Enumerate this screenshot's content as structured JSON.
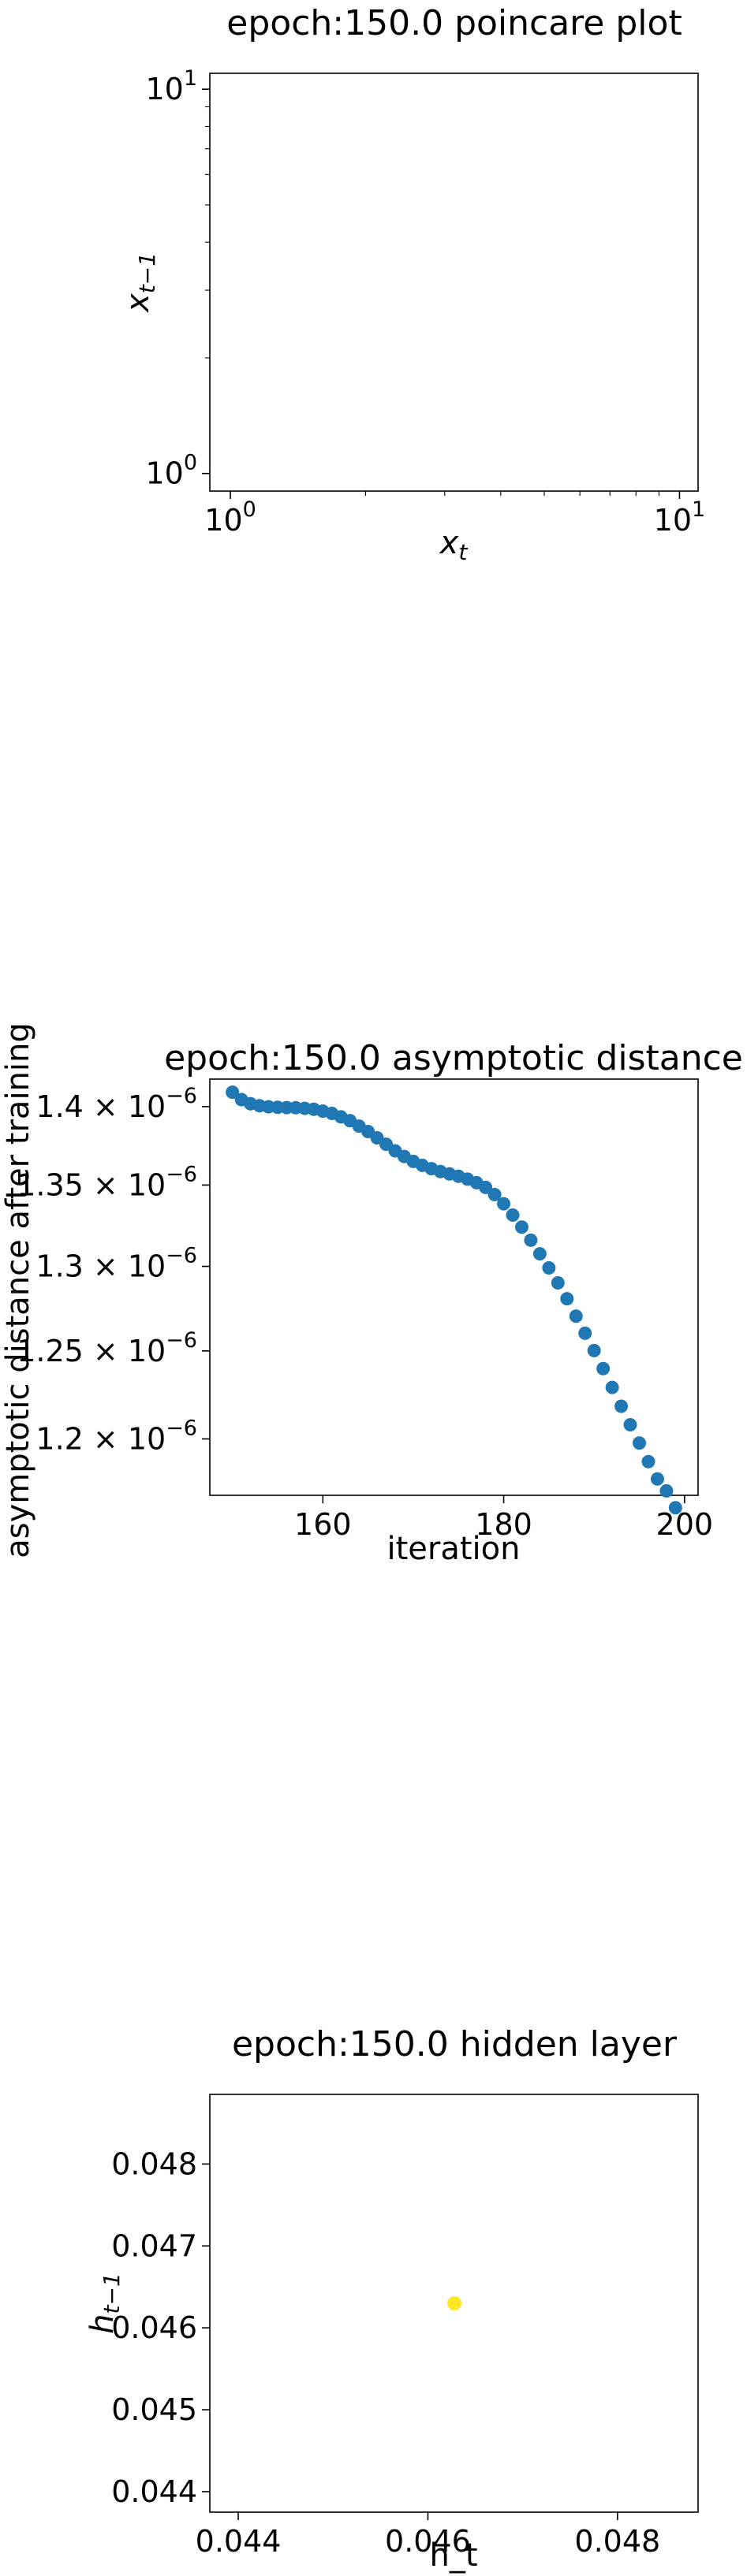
{
  "chart_data": [
    {
      "type": "scatter",
      "title": "epoch:150.0 poincare plot",
      "xlabel": "x_t",
      "ylabel": "x_{t-1}",
      "xscale": "log",
      "yscale": "log",
      "xlim": [
        0.9,
        11.0
      ],
      "ylim": [
        0.9,
        11.0
      ],
      "xticks": [
        {
          "value": 1,
          "label": "10^0"
        },
        {
          "value": 10,
          "label": "10^1"
        }
      ],
      "yticks": [
        {
          "value": 1,
          "label": "10^0"
        },
        {
          "value": 10,
          "label": "10^1"
        }
      ],
      "series": [
        {
          "x": [],
          "y": []
        }
      ],
      "grid": false
    },
    {
      "type": "scatter",
      "title": "epoch:150.0 asymptotic distance",
      "xlabel": "iteration",
      "ylabel": "asymptotic distance after training",
      "yscale": "log",
      "xlim": [
        147.5,
        201.5
      ],
      "ylim": [
        1.169e-06,
        1.418e-06
      ],
      "xticks": [
        {
          "value": 160,
          "label": "160"
        },
        {
          "value": 180,
          "label": "180"
        },
        {
          "value": 200,
          "label": "200"
        }
      ],
      "yticks": [
        {
          "value": 1.4e-06,
          "label": "1.4 × 10^−6"
        },
        {
          "value": 1.35e-06,
          "label": "1.35 × 10^−6"
        },
        {
          "value": 1.3e-06,
          "label": "1.3 × 10^−6"
        },
        {
          "value": 1.25e-06,
          "label": "1.25 × 10^−6"
        },
        {
          "value": 1.2e-06,
          "label": "1.2 × 10^−6"
        }
      ],
      "point_color": "#1f77b4",
      "series": [
        {
          "x": [
            150,
            151,
            152,
            153,
            154,
            155,
            156,
            157,
            158,
            159,
            160,
            161,
            162,
            163,
            164,
            165,
            166,
            167,
            168,
            169,
            170,
            171,
            172,
            173,
            174,
            175,
            176,
            177,
            178,
            179,
            180,
            181,
            182,
            183,
            184,
            185,
            186,
            187,
            188,
            189,
            190,
            191,
            192,
            193,
            194,
            195,
            196,
            197,
            198,
            199
          ],
          "y": [
            1.4094e-06,
            1.4046e-06,
            1.4019e-06,
            1.4006e-06,
            1.3999e-06,
            1.3996e-06,
            1.3994e-06,
            1.3993e-06,
            1.3989e-06,
            1.3983e-06,
            1.3971e-06,
            1.3956e-06,
            1.3934e-06,
            1.3909e-06,
            1.3874e-06,
            1.3839e-06,
            1.3799e-06,
            1.3758e-06,
            1.3716e-06,
            1.368e-06,
            1.3649e-06,
            1.3624e-06,
            1.3603e-06,
            1.3585e-06,
            1.357e-06,
            1.3555e-06,
            1.3537e-06,
            1.3515e-06,
            1.3485e-06,
            1.344e-06,
            1.3383e-06,
            1.3313e-06,
            1.3239e-06,
            1.3159e-06,
            1.3076e-06,
            1.2991e-06,
            1.2901e-06,
            1.2806e-06,
            1.2703e-06,
            1.2603e-06,
            1.2502e-06,
            1.2398e-06,
            1.229e-06,
            1.2183e-06,
            1.2079e-06,
            1.1977e-06,
            1.1874e-06,
            1.1779e-06,
            1.1714e-06,
            1.1623e-06
          ]
        }
      ],
      "grid": false
    },
    {
      "type": "scatter",
      "title": "epoch:150.0 hidden layer",
      "xlabel": "h_t",
      "ylabel": "h_{t-1}",
      "xlim": [
        0.0437,
        0.04885
      ],
      "ylim": [
        0.04375,
        0.04885
      ],
      "xticks": [
        {
          "value": 0.044,
          "label": "0.044"
        },
        {
          "value": 0.046,
          "label": "0.046"
        },
        {
          "value": 0.048,
          "label": "0.048"
        }
      ],
      "yticks": [
        {
          "value": 0.048,
          "label": "0.048"
        },
        {
          "value": 0.047,
          "label": "0.047"
        },
        {
          "value": 0.046,
          "label": "0.046"
        },
        {
          "value": 0.045,
          "label": "0.045"
        },
        {
          "value": 0.044,
          "label": "0.044"
        }
      ],
      "point_color": "#fde725",
      "series": [
        {
          "x": [
            0.04628
          ],
          "y": [
            0.0463
          ]
        }
      ],
      "grid": false
    }
  ]
}
